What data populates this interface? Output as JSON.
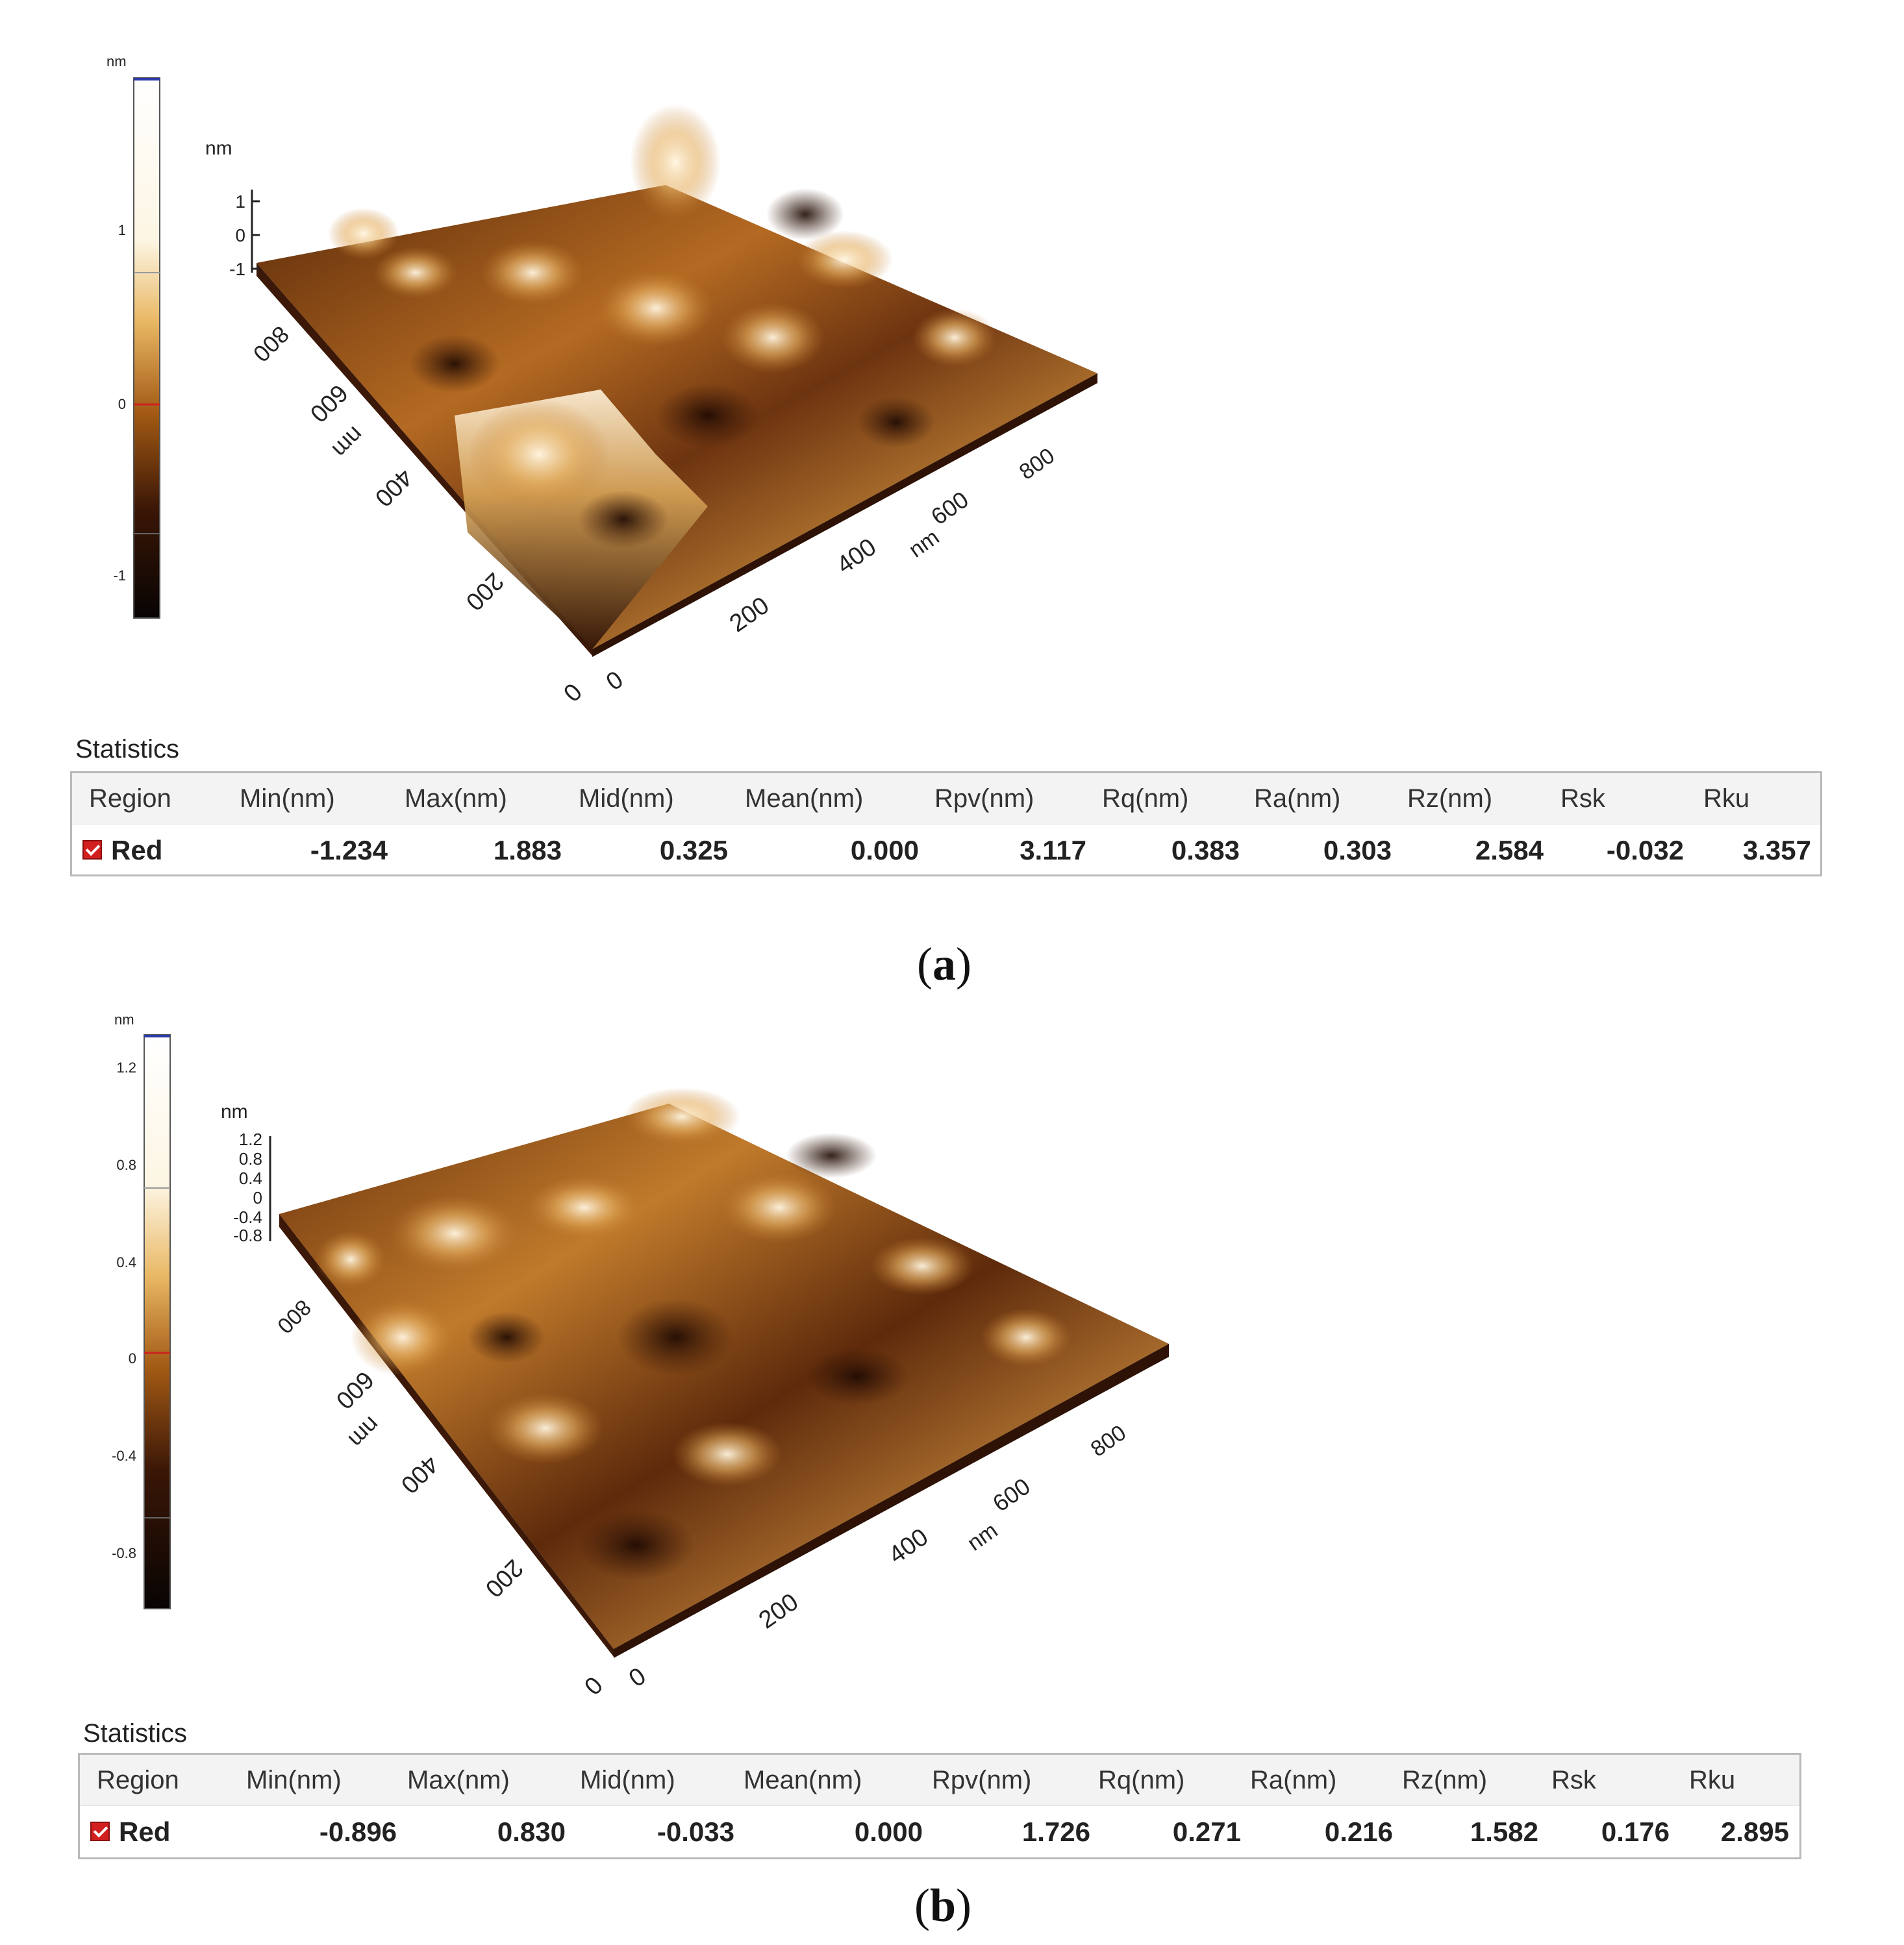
{
  "panels": [
    {
      "caption": {
        "open": "(",
        "letter": "a",
        "close": ")"
      },
      "colorbar": {
        "unit": "nm",
        "ticks": [
          "1",
          "0",
          "-1"
        ]
      },
      "plot3d": {
        "z_label": "nm",
        "z_ticks": [
          "1",
          "0",
          "-1"
        ],
        "x_ticks": [
          "0",
          "200",
          "400",
          "600",
          "800"
        ],
        "x_unit": "nm",
        "y_ticks": [
          "0",
          "200",
          "400",
          "600",
          "800"
        ],
        "y_unit": "nm"
      },
      "statistics": {
        "title": "Statistics",
        "headers": [
          "Region",
          "Min(nm)",
          "Max(nm)",
          "Mid(nm)",
          "Mean(nm)",
          "Rpv(nm)",
          "Rq(nm)",
          "Ra(nm)",
          "Rz(nm)",
          "Rsk",
          "Rku"
        ],
        "row": [
          "Red",
          "-1.234",
          "1.883",
          "0.325",
          "0.000",
          "3.117",
          "0.383",
          "0.303",
          "2.584",
          "-0.032",
          "3.357"
        ]
      }
    },
    {
      "caption": {
        "open": "(",
        "letter": "b",
        "close": ")"
      },
      "colorbar": {
        "unit": "nm",
        "ticks": [
          "1.2",
          "0.8",
          "0.4",
          "0",
          "-0.4",
          "-0.8"
        ]
      },
      "plot3d": {
        "z_label": "nm",
        "z_ticks": [
          "1.2",
          "0.8",
          "0.4",
          "0",
          "-0.4",
          "-0.8"
        ],
        "x_ticks": [
          "0",
          "200",
          "400",
          "600",
          "800"
        ],
        "x_unit": "nm",
        "y_ticks": [
          "0",
          "200",
          "400",
          "600",
          "800"
        ],
        "y_unit": "nm"
      },
      "statistics": {
        "title": "Statistics",
        "headers": [
          "Region",
          "Min(nm)",
          "Max(nm)",
          "Mid(nm)",
          "Mean(nm)",
          "Rpv(nm)",
          "Rq(nm)",
          "Ra(nm)",
          "Rz(nm)",
          "Rsk",
          "Rku"
        ],
        "row": [
          "Red",
          "-0.896",
          "0.830",
          "-0.033",
          "0.000",
          "1.726",
          "0.271",
          "0.216",
          "1.582",
          "0.176",
          "2.895"
        ]
      }
    }
  ],
  "colors": {
    "afm_low": "#0b0604",
    "afm_mid": "#7a3f10",
    "afm_high": "#e0a552",
    "afm_peak": "#fff8ea",
    "checkbox": "#d21f1f",
    "table_border": "#b9b9b9"
  },
  "icons": {
    "region_checkbox": "checkbox-checked-icon"
  }
}
